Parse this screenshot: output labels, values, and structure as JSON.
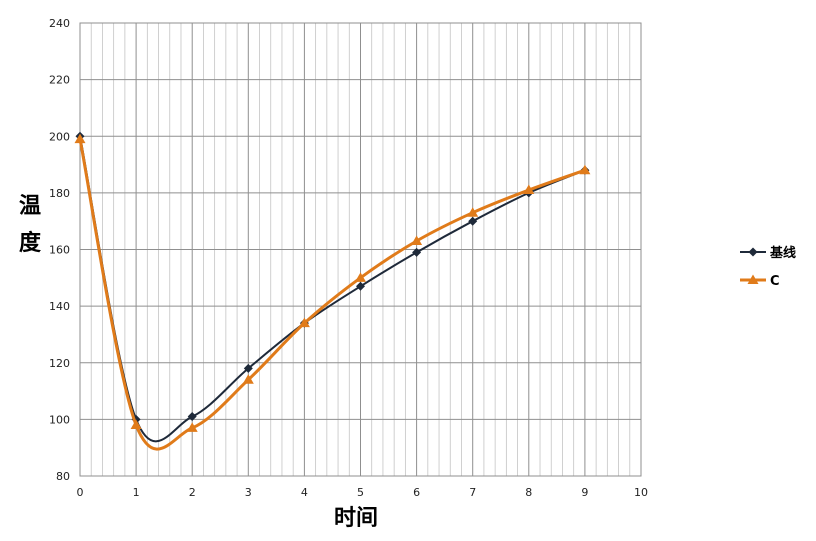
{
  "chart_data": {
    "type": "line",
    "xlabel": "时间",
    "ylabel": "温度",
    "xlim": [
      0,
      10
    ],
    "ylim": [
      80,
      240
    ],
    "x_ticks": [
      0,
      1,
      2,
      3,
      4,
      5,
      6,
      7,
      8,
      9,
      10
    ],
    "y_ticks": [
      80,
      100,
      120,
      140,
      160,
      180,
      200,
      220,
      240
    ],
    "grid": "major and minor",
    "legend_position": "right",
    "series": [
      {
        "name": "基线",
        "color": "#1f2a3a",
        "marker": "diamond",
        "x": [
          0,
          1,
          2,
          3,
          4,
          5,
          6,
          7,
          8,
          9
        ],
        "values": [
          200,
          100,
          101,
          118,
          134,
          147,
          159,
          170,
          180,
          188
        ]
      },
      {
        "name": "C",
        "color": "#e07b1a",
        "marker": "triangle",
        "x": [
          0,
          1,
          2,
          3,
          4,
          5,
          6,
          7,
          8,
          9
        ],
        "values": [
          199,
          98,
          97,
          114,
          134,
          150,
          163,
          173,
          181,
          188
        ]
      }
    ]
  }
}
